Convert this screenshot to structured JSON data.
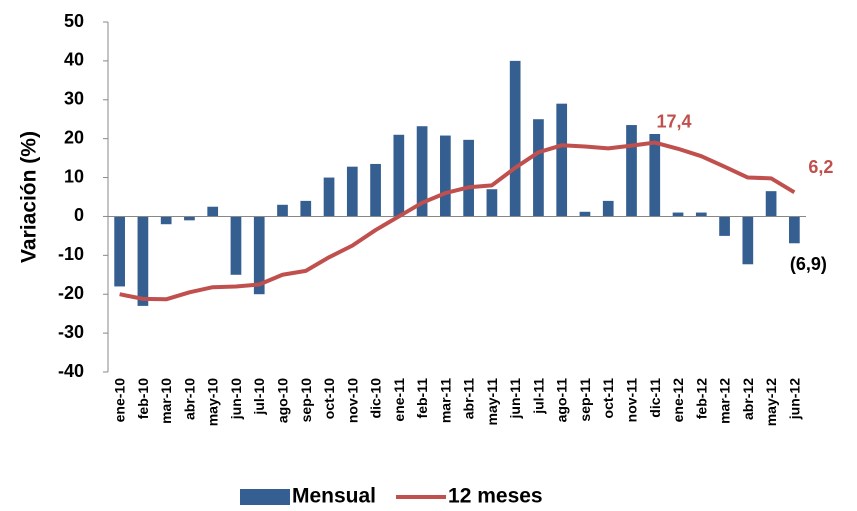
{
  "chart_data": {
    "type": "bar-line",
    "y_axis_label": "Variación (%)",
    "categories": [
      "ene-10",
      "feb-10",
      "mar-10",
      "abr-10",
      "may-10",
      "jun-10",
      "jul-10",
      "ago-10",
      "sep-10",
      "oct-10",
      "nov-10",
      "dic-10",
      "ene-11",
      "feb-11",
      "mar-11",
      "abr-11",
      "may-11",
      "jun-11",
      "jul-11",
      "ago-11",
      "sep-11",
      "oct-11",
      "nov-11",
      "dic-11",
      "ene-12",
      "feb-12",
      "mar-12",
      "abr-12",
      "may-12",
      "jun-12"
    ],
    "series": [
      {
        "name": "Mensual",
        "type": "bar",
        "color": "#355e91",
        "values": [
          -18,
          -23,
          -2,
          -1,
          2.5,
          -15,
          -20,
          3,
          4,
          10,
          12.8,
          13.5,
          21,
          23.2,
          20.8,
          19.7,
          7,
          40,
          25,
          29,
          1.2,
          4,
          23.5,
          21.2,
          1,
          1,
          -5,
          -12.3,
          6.5,
          -6.9
        ],
        "value_labels": [
          null,
          null,
          null,
          null,
          null,
          null,
          null,
          null,
          null,
          null,
          null,
          null,
          null,
          null,
          null,
          null,
          null,
          null,
          null,
          null,
          null,
          null,
          null,
          null,
          null,
          null,
          null,
          null,
          null,
          "(6,9)"
        ],
        "value_label_color": "#000000"
      },
      {
        "name": "12 meses",
        "type": "line",
        "color": "#c0504d",
        "values": [
          -20,
          -21.2,
          -21.3,
          -19.5,
          -18.2,
          -18,
          -17.5,
          -15,
          -14,
          -10.5,
          -7.5,
          -3.5,
          0,
          3.5,
          6,
          7.5,
          8,
          12.5,
          16.5,
          18.3,
          18,
          17.5,
          18.2,
          19,
          17.4,
          15.5,
          12.8,
          10,
          9.8,
          6.2
        ],
        "value_labels": [
          null,
          null,
          null,
          null,
          null,
          null,
          null,
          null,
          null,
          null,
          null,
          null,
          null,
          null,
          null,
          null,
          null,
          null,
          null,
          null,
          null,
          null,
          null,
          null,
          "17,4",
          null,
          null,
          null,
          null,
          "6,2"
        ],
        "value_label_color": "#c0504d"
      }
    ],
    "ylim": [
      -40,
      50
    ],
    "yticks": [
      -40,
      -30,
      -20,
      -10,
      0,
      10,
      20,
      30,
      40,
      50
    ],
    "legend": "bottom"
  }
}
